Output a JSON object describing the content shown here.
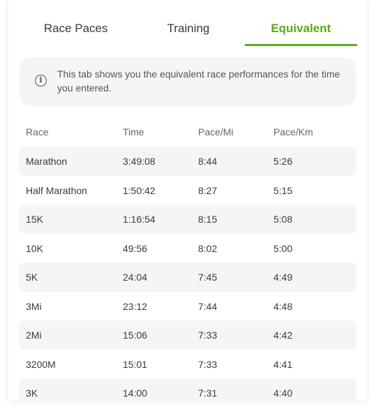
{
  "tabs": [
    {
      "label": "Race Paces",
      "active": false
    },
    {
      "label": "Training",
      "active": false
    },
    {
      "label": "Equivalent",
      "active": true
    }
  ],
  "info": {
    "icon": "info-icon",
    "text": "This tab shows you the equivalent race performances for the time you entered."
  },
  "colors": {
    "accent": "#5aab1a",
    "row_shade": "#f5f5f7"
  },
  "table": {
    "headers": [
      "Race",
      "Time",
      "Pace/Mi",
      "Pace/Km"
    ],
    "rows": [
      {
        "race": "Marathon",
        "time": "3:49:08",
        "pace_mi": "8:44",
        "pace_km": "5:26"
      },
      {
        "race": "Half Marathon",
        "time": "1:50:42",
        "pace_mi": "8:27",
        "pace_km": "5:15"
      },
      {
        "race": "15K",
        "time": "1:16:54",
        "pace_mi": "8:15",
        "pace_km": "5:08"
      },
      {
        "race": "10K",
        "time": "49:56",
        "pace_mi": "8:02",
        "pace_km": "5:00"
      },
      {
        "race": "5K",
        "time": "24:04",
        "pace_mi": "7:45",
        "pace_km": "4:49"
      },
      {
        "race": "3Mi",
        "time": "23:12",
        "pace_mi": "7:44",
        "pace_km": "4:48"
      },
      {
        "race": "2Mi",
        "time": "15:06",
        "pace_mi": "7:33",
        "pace_km": "4:42"
      },
      {
        "race": "3200M",
        "time": "15:01",
        "pace_mi": "7:33",
        "pace_km": "4:41"
      },
      {
        "race": "3K",
        "time": "14:00",
        "pace_mi": "7:31",
        "pace_km": "4:40"
      }
    ]
  }
}
